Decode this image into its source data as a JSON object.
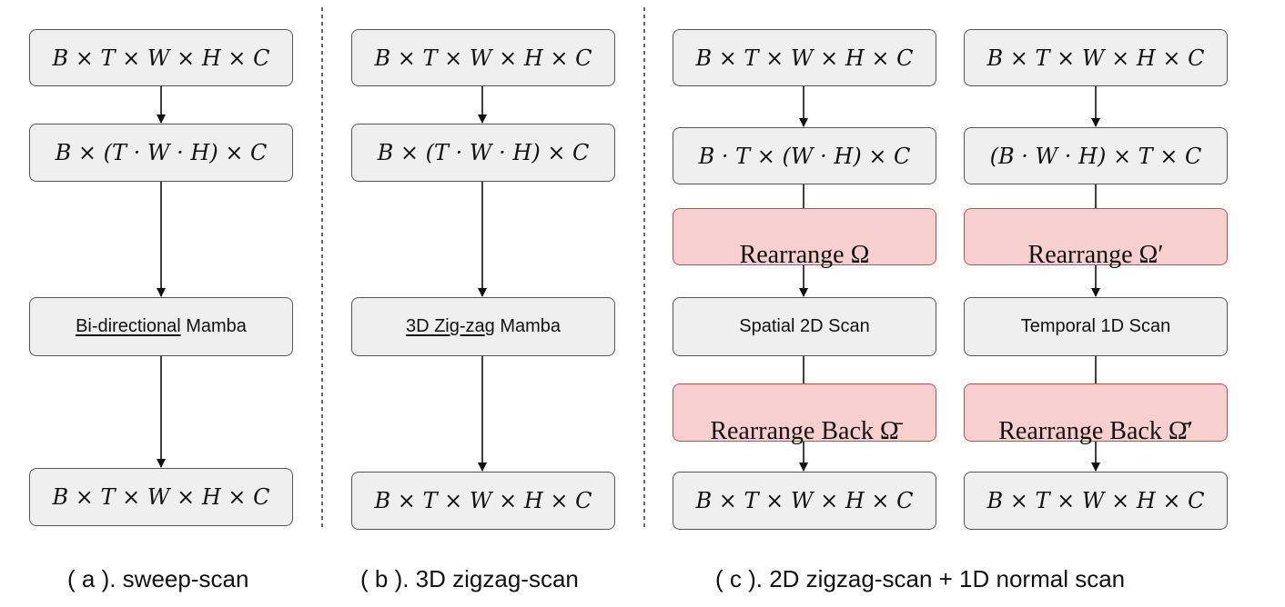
{
  "panel_a": {
    "input": "B × T × W × H × C",
    "flatten": "B × (T · W · H) × C",
    "block_underlined": "Bi-directional",
    "block_rest": " Mamba",
    "output": "B × T × W × H × C",
    "caption": "( a ). sweep-scan"
  },
  "panel_b": {
    "input": "B × T × W × H × C",
    "flatten": "B × (T · W · H) × C",
    "block_underlined": "3D Zig-za",
    "block_rest": "g Mamba",
    "output": "B × T × W × H × C",
    "caption": "( b ). 3D zigzag-scan"
  },
  "panel_c": {
    "caption": "( c ). 2D zigzag-scan + 1D normal scan",
    "spatial": {
      "input": "B × T × W × H × C",
      "reshape": "B · T × (W · H) × C",
      "rearrange": "Rearrange Ω",
      "scan": "Spatial 2D Scan",
      "rearrange_back": "Rearrange Back Ω̄",
      "output": "B × T × W × H × C"
    },
    "temporal": {
      "input": "B × T × W × H × C",
      "reshape": "(B · W · H) × T × C",
      "rearrange": "Rearrange Ω′",
      "scan": "Temporal 1D Scan",
      "rearrange_back": "Rearrange Back Ω̄′",
      "output": "B × T × W × H × C"
    }
  }
}
